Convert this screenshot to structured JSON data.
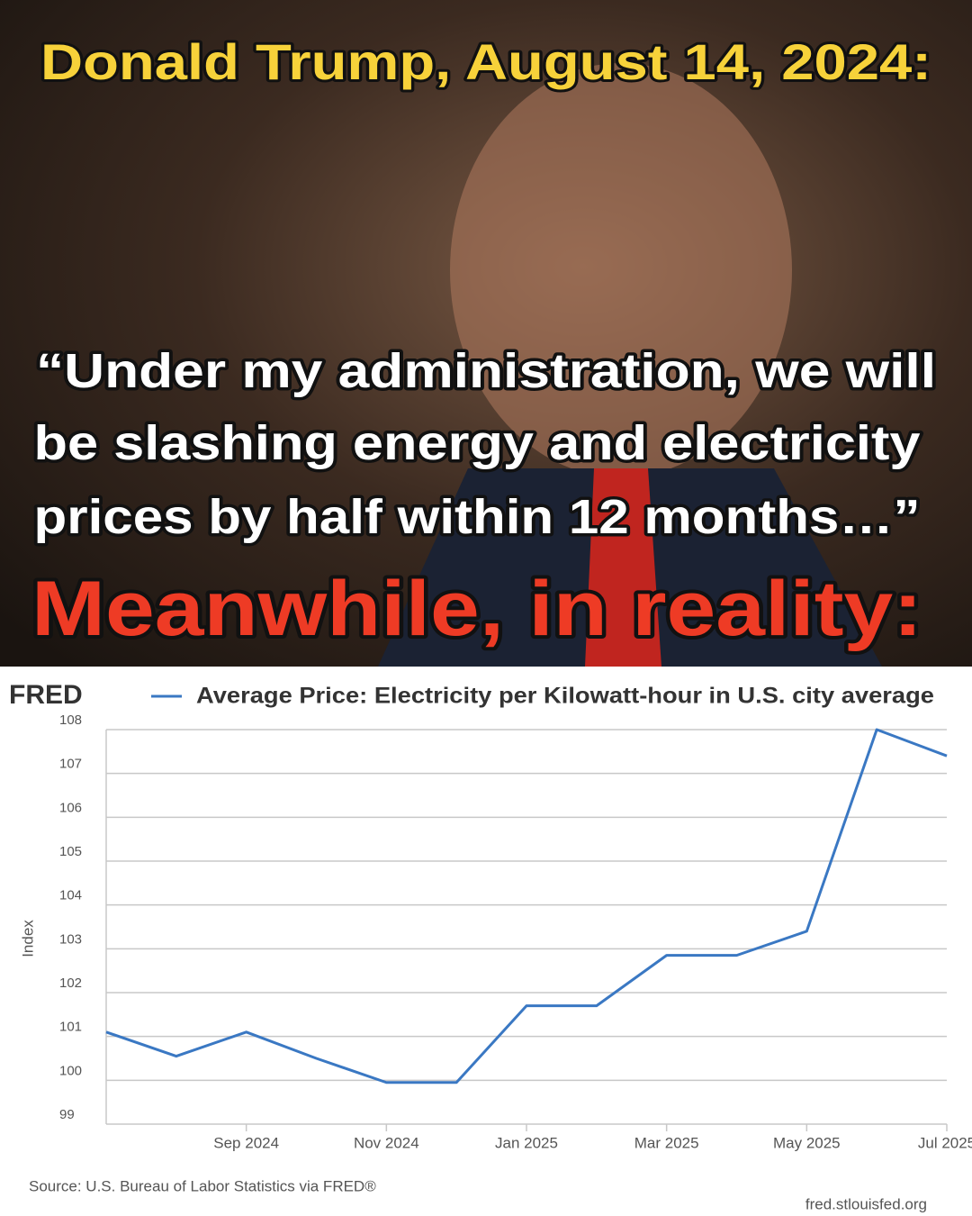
{
  "header": {
    "title": "Donald Trump, August 14, 2024:",
    "quote": [
      "“Under my administration, we will",
      "be slashing energy and electricity",
      "prices by half within 12 months…”"
    ],
    "reality": "Meanwhile, in reality:"
  },
  "chart_data": {
    "type": "line",
    "logo": "FRED",
    "x": [
      "2024-07",
      "2024-08",
      "2024-09",
      "2024-10",
      "2024-11",
      "2024-12",
      "2025-01",
      "2025-02",
      "2025-03",
      "2025-04",
      "2025-05",
      "2025-06",
      "2025-07"
    ],
    "series": [
      {
        "name": "Average Price: Electricity per Kilowatt-hour in U.S. city average",
        "color": "#3a78c3",
        "values": [
          101.1,
          100.55,
          101.1,
          100.5,
          99.95,
          99.95,
          101.7,
          101.7,
          102.85,
          102.85,
          103.4,
          108.0,
          107.4
        ]
      }
    ],
    "ylabel": "Index",
    "ylim": [
      99,
      108
    ],
    "yticks": [
      99,
      100,
      101,
      102,
      103,
      104,
      105,
      106,
      107,
      108
    ],
    "xlim": [
      "2024-07",
      "2025-07"
    ],
    "xticks": [
      {
        "value": "2024-09",
        "label": "Sep 2024"
      },
      {
        "value": "2024-11",
        "label": "Nov 2024"
      },
      {
        "value": "2025-01",
        "label": "Jan 2025"
      },
      {
        "value": "2025-03",
        "label": "Mar 2025"
      },
      {
        "value": "2025-05",
        "label": "May 2025"
      },
      {
        "value": "2025-07",
        "label": "Jul 2025"
      }
    ],
    "grid": true,
    "source": "Source: U.S. Bureau of Labor Statistics via FRED®",
    "site": "fred.stlouisfed.org"
  }
}
